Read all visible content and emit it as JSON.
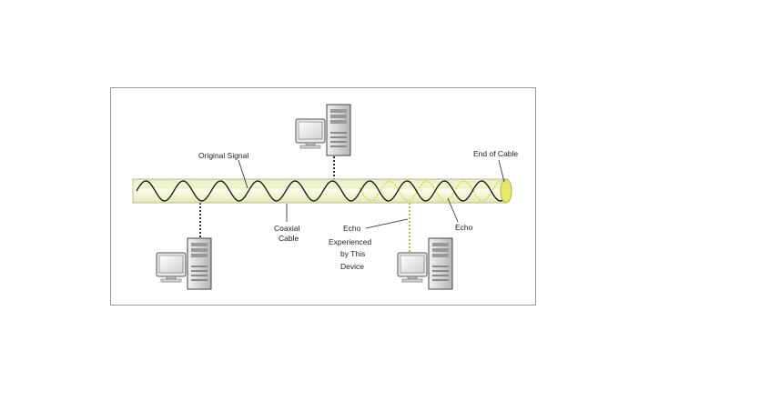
{
  "labels": {
    "original_signal": "Original Signal",
    "end_of_cable": "End of Cable",
    "coaxial_line1": "Coaxial",
    "coaxial_line2": "Cable",
    "echo": "Echo",
    "echo_device_line1": "Echo",
    "echo_device_line2": "Experienced",
    "echo_device_line3": "by This",
    "echo_device_line4": "Device"
  },
  "colors": {
    "cable_fill": "#f7f9d6",
    "cable_edge": "#b9bc8c",
    "cable_end": "#e6e86a",
    "signal": "#111111",
    "echo": "#d8d64a",
    "tap_device": "#333333",
    "tap_echo": "#c8c11a"
  },
  "devices": [
    {
      "name": "computer-top",
      "tap": "solid"
    },
    {
      "name": "computer-bottom-left",
      "tap": "solid"
    },
    {
      "name": "computer-bottom-right",
      "tap": "echo"
    }
  ]
}
